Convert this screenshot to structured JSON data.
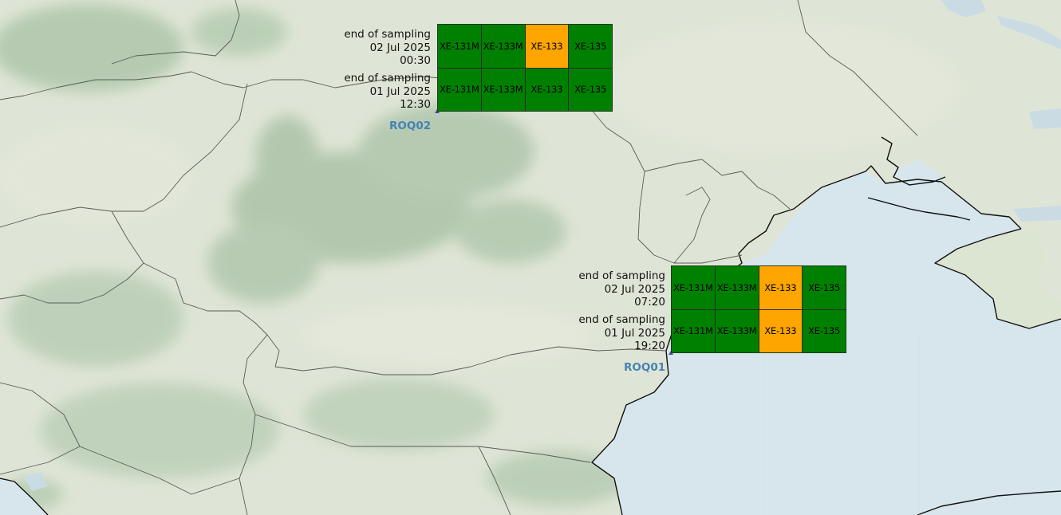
{
  "map": {
    "colors": {
      "land": "#dfe5d6",
      "forest": "#8fb08f",
      "sea": "#d7e6ec",
      "border": "#555555",
      "coast": "#111111",
      "status_ok": "#008000",
      "status_warn": "#ffa500",
      "station_label": "#4682b4"
    }
  },
  "stations": [
    {
      "id": "ROQ02",
      "samples": [
        {
          "label": "end of sampling",
          "date": "02 Jul 2025",
          "time": "00:30",
          "isotopes": [
            {
              "name": "XE-131M",
              "status": "ok"
            },
            {
              "name": "XE-133M",
              "status": "ok"
            },
            {
              "name": "XE-133",
              "status": "warn"
            },
            {
              "name": "XE-135",
              "status": "ok"
            }
          ]
        },
        {
          "label": "end of sampling",
          "date": "01 Jul 2025",
          "time": "12:30",
          "isotopes": [
            {
              "name": "XE-131M",
              "status": "ok"
            },
            {
              "name": "XE-133M",
              "status": "ok"
            },
            {
              "name": "XE-133",
              "status": "ok"
            },
            {
              "name": "XE-135",
              "status": "ok"
            }
          ]
        }
      ]
    },
    {
      "id": "ROQ01",
      "samples": [
        {
          "label": "end of sampling",
          "date": "02 Jul 2025",
          "time": "07:20",
          "isotopes": [
            {
              "name": "XE-131M",
              "status": "ok"
            },
            {
              "name": "XE-133M",
              "status": "ok"
            },
            {
              "name": "XE-133",
              "status": "warn"
            },
            {
              "name": "XE-135",
              "status": "ok"
            }
          ]
        },
        {
          "label": "end of sampling",
          "date": "01 Jul 2025",
          "time": "19:20",
          "isotopes": [
            {
              "name": "XE-131M",
              "status": "ok"
            },
            {
              "name": "XE-133M",
              "status": "ok"
            },
            {
              "name": "XE-133",
              "status": "warn"
            },
            {
              "name": "XE-135",
              "status": "ok"
            }
          ]
        }
      ]
    }
  ]
}
